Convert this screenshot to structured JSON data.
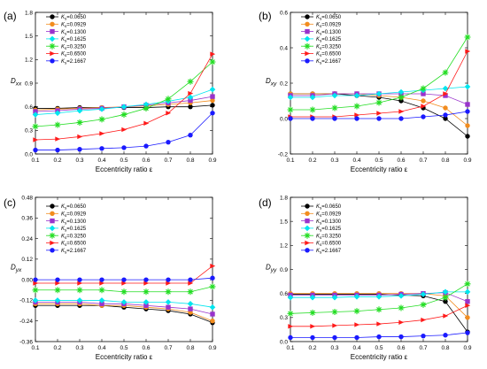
{
  "chart_data": [
    {
      "type": "line",
      "panel_label": "(a)",
      "ylabel_main": "D",
      "ylabel_sub": "xx",
      "xlabel": "Eccentricity ratio ε",
      "ylim": [
        0,
        1.8
      ],
      "yticks": [
        0.0,
        0.3,
        0.6,
        0.9,
        1.2,
        1.5,
        1.8
      ],
      "yticklabels": [
        "0.0",
        "0.3",
        "0.6",
        "0.9",
        "1.2",
        "1.5",
        "1.8"
      ],
      "xlim": [
        0.1,
        0.9
      ],
      "xticks": [
        0.1,
        0.2,
        0.3,
        0.4,
        0.5,
        0.6,
        0.7,
        0.8,
        0.9
      ],
      "xticklabels": [
        "0.1",
        "0.2",
        "0.3",
        "0.4",
        "0.5",
        "0.6",
        "0.7",
        "0.8",
        "0.9"
      ],
      "legend_position": "top-left",
      "x": [
        0.1,
        0.2,
        0.3,
        0.4,
        0.5,
        0.6,
        0.7,
        0.8,
        0.9
      ],
      "series": [
        {
          "name": "K_s=0.0650",
          "color": "#000000",
          "marker": "circle",
          "values": [
            0.58,
            0.58,
            0.59,
            0.59,
            0.59,
            0.59,
            0.6,
            0.6,
            0.62
          ]
        },
        {
          "name": "K_s=0.0929",
          "color": "#f28c1e",
          "marker": "circle",
          "values": [
            0.56,
            0.57,
            0.58,
            0.59,
            0.6,
            0.61,
            0.63,
            0.65,
            0.68
          ]
        },
        {
          "name": "K_s=0.1300",
          "color": "#9933cc",
          "marker": "square",
          "values": [
            0.54,
            0.55,
            0.57,
            0.58,
            0.6,
            0.62,
            0.65,
            0.68,
            0.73
          ]
        },
        {
          "name": "K_s=0.1625",
          "color": "#00e5ee",
          "marker": "diamond",
          "values": [
            0.5,
            0.52,
            0.55,
            0.57,
            0.6,
            0.63,
            0.67,
            0.72,
            0.82
          ]
        },
        {
          "name": "K_s=0.3250",
          "color": "#22dd22",
          "marker": "star",
          "values": [
            0.35,
            0.37,
            0.4,
            0.44,
            0.5,
            0.58,
            0.7,
            0.92,
            1.17
          ]
        },
        {
          "name": "K_s=0.6500",
          "color": "#ff1a1a",
          "marker": "triangle-right",
          "values": [
            0.18,
            0.19,
            0.22,
            0.26,
            0.31,
            0.39,
            0.52,
            0.77,
            1.27
          ]
        },
        {
          "name": "K_s=2.1667",
          "color": "#1a1aff",
          "marker": "circle",
          "values": [
            0.05,
            0.05,
            0.06,
            0.07,
            0.08,
            0.1,
            0.15,
            0.24,
            0.52
          ]
        }
      ]
    },
    {
      "type": "line",
      "panel_label": "(b)",
      "ylabel_main": "D",
      "ylabel_sub": "xy",
      "xlabel": "Eccentricity ratio ε",
      "ylim": [
        -0.2,
        0.6
      ],
      "yticks": [
        -0.2,
        0.0,
        0.2,
        0.4,
        0.6
      ],
      "yticklabels": [
        "-0.2",
        "0.0",
        "0.2",
        "0.4",
        "0.6"
      ],
      "xlim": [
        0.1,
        0.9
      ],
      "xticks": [
        0.1,
        0.2,
        0.3,
        0.4,
        0.5,
        0.6,
        0.7,
        0.8,
        0.9
      ],
      "xticklabels": [
        "0.1",
        "0.2",
        "0.3",
        "0.4",
        "0.5",
        "0.6",
        "0.7",
        "0.8",
        "0.9"
      ],
      "legend_position": "top-left",
      "x": [
        0.1,
        0.2,
        0.3,
        0.4,
        0.5,
        0.6,
        0.7,
        0.8,
        0.9
      ],
      "series": [
        {
          "name": "K_s=0.0650",
          "color": "#000000",
          "marker": "circle",
          "values": [
            0.14,
            0.14,
            0.14,
            0.13,
            0.12,
            0.1,
            0.06,
            0.0,
            -0.1
          ]
        },
        {
          "name": "K_s=0.0929",
          "color": "#f28c1e",
          "marker": "circle",
          "values": [
            0.14,
            0.14,
            0.14,
            0.14,
            0.13,
            0.12,
            0.1,
            0.06,
            -0.04
          ]
        },
        {
          "name": "K_s=0.1300",
          "color": "#9933cc",
          "marker": "square",
          "values": [
            0.13,
            0.13,
            0.14,
            0.14,
            0.14,
            0.14,
            0.14,
            0.13,
            0.08
          ]
        },
        {
          "name": "K_s=0.1625",
          "color": "#00e5ee",
          "marker": "diamond",
          "values": [
            0.12,
            0.12,
            0.13,
            0.13,
            0.14,
            0.15,
            0.16,
            0.17,
            0.18
          ]
        },
        {
          "name": "K_s=0.3250",
          "color": "#22dd22",
          "marker": "star",
          "values": [
            0.05,
            0.05,
            0.06,
            0.07,
            0.09,
            0.12,
            0.17,
            0.26,
            0.46
          ]
        },
        {
          "name": "K_s=0.6500",
          "color": "#ff1a1a",
          "marker": "triangle-right",
          "values": [
            0.01,
            0.01,
            0.01,
            0.02,
            0.03,
            0.04,
            0.07,
            0.14,
            0.38
          ]
        },
        {
          "name": "K_s=2.1667",
          "color": "#1a1aff",
          "marker": "circle",
          "values": [
            0.0,
            0.0,
            0.0,
            0.0,
            0.0,
            0.0,
            0.01,
            0.02,
            0.04
          ]
        }
      ]
    },
    {
      "type": "line",
      "panel_label": "(c)",
      "ylabel_main": "D",
      "ylabel_sub": "yx",
      "xlabel": "Eccentricity ratio ε",
      "ylim": [
        -0.36,
        0.48
      ],
      "yticks": [
        -0.36,
        -0.24,
        -0.12,
        0.0,
        0.12,
        0.24,
        0.36,
        0.48
      ],
      "yticklabels": [
        "-0.36",
        "-0.24",
        "-0.12",
        "0.00",
        "0.12",
        "0.24",
        "0.36",
        "0.48"
      ],
      "xlim": [
        0.1,
        0.9
      ],
      "xticks": [
        0.1,
        0.2,
        0.3,
        0.4,
        0.5,
        0.6,
        0.7,
        0.8,
        0.9
      ],
      "xticklabels": [
        "0.1",
        "0.2",
        "0.3",
        "0.4",
        "0.5",
        "0.6",
        "0.7",
        "0.8",
        "0.9"
      ],
      "legend_position": "top-left",
      "x": [
        0.1,
        0.2,
        0.3,
        0.4,
        0.5,
        0.6,
        0.7,
        0.8,
        0.9
      ],
      "series": [
        {
          "name": "K_s=0.0650",
          "color": "#000000",
          "marker": "circle",
          "values": [
            -0.15,
            -0.15,
            -0.15,
            -0.15,
            -0.16,
            -0.17,
            -0.18,
            -0.2,
            -0.25
          ]
        },
        {
          "name": "K_s=0.0929",
          "color": "#f28c1e",
          "marker": "circle",
          "values": [
            -0.14,
            -0.14,
            -0.14,
            -0.15,
            -0.15,
            -0.16,
            -0.17,
            -0.19,
            -0.24
          ]
        },
        {
          "name": "K_s=0.1300",
          "color": "#9933cc",
          "marker": "square",
          "values": [
            -0.13,
            -0.13,
            -0.13,
            -0.14,
            -0.14,
            -0.15,
            -0.16,
            -0.17,
            -0.2
          ]
        },
        {
          "name": "K_s=0.1625",
          "color": "#00e5ee",
          "marker": "diamond",
          "values": [
            -0.12,
            -0.12,
            -0.12,
            -0.12,
            -0.13,
            -0.13,
            -0.13,
            -0.14,
            -0.16
          ]
        },
        {
          "name": "K_s=0.3250",
          "color": "#22dd22",
          "marker": "star",
          "values": [
            -0.06,
            -0.06,
            -0.06,
            -0.06,
            -0.07,
            -0.07,
            -0.07,
            -0.07,
            -0.04
          ]
        },
        {
          "name": "K_s=0.6500",
          "color": "#ff1a1a",
          "marker": "triangle-right",
          "values": [
            -0.02,
            -0.02,
            -0.02,
            -0.02,
            -0.02,
            -0.02,
            -0.02,
            -0.02,
            0.08
          ]
        },
        {
          "name": "K_s=2.1667",
          "color": "#1a1aff",
          "marker": "circle",
          "values": [
            0.0,
            0.0,
            0.0,
            0.0,
            0.0,
            0.0,
            0.0,
            0.0,
            0.01
          ]
        }
      ]
    },
    {
      "type": "line",
      "panel_label": "(d)",
      "ylabel_main": "D",
      "ylabel_sub": "yy",
      "xlabel": "Eccentricity ratio ε",
      "ylim": [
        0,
        1.8
      ],
      "yticks": [
        0.0,
        0.3,
        0.6,
        0.9,
        1.2,
        1.5,
        1.8
      ],
      "yticklabels": [
        "0.0",
        "0.3",
        "0.6",
        "0.9",
        "1.2",
        "1.5",
        "1.8"
      ],
      "xlim": [
        0.1,
        0.9
      ],
      "xticks": [
        0.1,
        0.2,
        0.3,
        0.4,
        0.5,
        0.6,
        0.7,
        0.8,
        0.9
      ],
      "xticklabels": [
        "0.1",
        "0.2",
        "0.3",
        "0.4",
        "0.5",
        "0.6",
        "0.7",
        "0.8",
        "0.9"
      ],
      "legend_position": "top-left",
      "x": [
        0.1,
        0.2,
        0.3,
        0.4,
        0.5,
        0.6,
        0.7,
        0.8,
        0.9
      ],
      "series": [
        {
          "name": "K_s=0.0650",
          "color": "#000000",
          "marker": "circle",
          "values": [
            0.59,
            0.59,
            0.59,
            0.59,
            0.59,
            0.58,
            0.57,
            0.5,
            0.12
          ]
        },
        {
          "name": "K_s=0.0929",
          "color": "#f28c1e",
          "marker": "circle",
          "values": [
            0.6,
            0.6,
            0.6,
            0.6,
            0.6,
            0.6,
            0.6,
            0.57,
            0.3
          ]
        },
        {
          "name": "K_s=0.1300",
          "color": "#9933cc",
          "marker": "square",
          "values": [
            0.58,
            0.58,
            0.58,
            0.58,
            0.58,
            0.59,
            0.6,
            0.61,
            0.5
          ]
        },
        {
          "name": "K_s=0.1625",
          "color": "#00e5ee",
          "marker": "diamond",
          "values": [
            0.55,
            0.55,
            0.55,
            0.56,
            0.56,
            0.57,
            0.59,
            0.62,
            0.62
          ]
        },
        {
          "name": "K_s=0.3250",
          "color": "#22dd22",
          "marker": "star",
          "values": [
            0.35,
            0.36,
            0.37,
            0.38,
            0.4,
            0.42,
            0.46,
            0.55,
            0.72
          ]
        },
        {
          "name": "K_s=0.6500",
          "color": "#ff1a1a",
          "marker": "triangle-right",
          "values": [
            0.19,
            0.19,
            0.2,
            0.21,
            0.22,
            0.24,
            0.27,
            0.32,
            0.45
          ]
        },
        {
          "name": "K_s=2.1667",
          "color": "#1a1aff",
          "marker": "circle",
          "values": [
            0.05,
            0.05,
            0.05,
            0.05,
            0.06,
            0.06,
            0.07,
            0.08,
            0.11
          ]
        }
      ]
    }
  ]
}
